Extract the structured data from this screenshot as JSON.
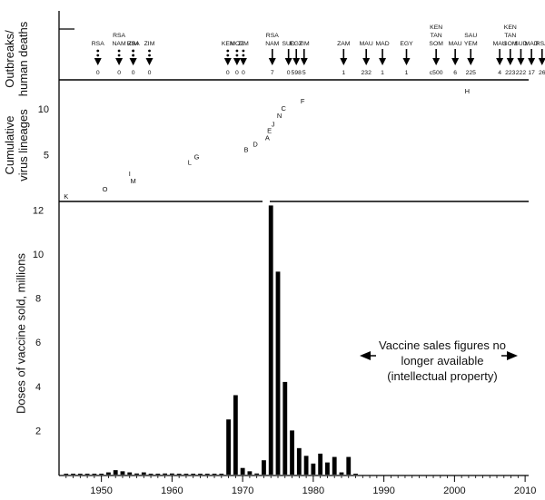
{
  "chart_data": {
    "type": "bar",
    "panels": {
      "outbreaks": {
        "ylabel": "Outbreaks/\nhuman deaths",
        "events": [
          {
            "year": 1949.5,
            "countries": [
              "RSA"
            ],
            "deaths": "0",
            "arrow": "dotted"
          },
          {
            "year": 1952.5,
            "countries": [
              "RSA",
              "NAM"
            ],
            "deaths": "0",
            "arrow": "dotted"
          },
          {
            "year": 1954.5,
            "countries": [
              "RSA"
            ],
            "deaths": "0",
            "arrow": "dotted"
          },
          {
            "year": 1954.5,
            "countries": [
              "ZIM"
            ],
            "deaths": "",
            "arrow": "dotted"
          },
          {
            "year": 1956.8,
            "countries": [
              "ZIM"
            ],
            "deaths": "0",
            "arrow": "dotted"
          },
          {
            "year": 1967.9,
            "countries": [
              "KEN"
            ],
            "deaths": "0",
            "arrow": "dotted"
          },
          {
            "year": 1969.2,
            "countries": [
              "MOZ"
            ],
            "deaths": "0",
            "arrow": "dotted"
          },
          {
            "year": 1970.1,
            "countries": [
              "ZIM"
            ],
            "deaths": "0",
            "arrow": "dotted"
          },
          {
            "year": 1974.2,
            "countries": [
              "RSA",
              "NAM"
            ],
            "deaths": "7",
            "arrow": "solid"
          },
          {
            "year": 1976.5,
            "countries": [
              "SUD"
            ],
            "deaths": "0",
            "arrow": "solid"
          },
          {
            "year": 1977.6,
            "countries": [
              "EGY"
            ],
            "deaths": "598",
            "arrow": "solid"
          },
          {
            "year": 1978.7,
            "countries": [
              "ZIM"
            ],
            "deaths": "5",
            "arrow": "solid"
          },
          {
            "year": 1984.3,
            "countries": [
              "ZAM"
            ],
            "deaths": "1",
            "arrow": "solid"
          },
          {
            "year": 1987.5,
            "countries": [
              "MAU"
            ],
            "deaths": "232",
            "arrow": "solid"
          },
          {
            "year": 1989.8,
            "countries": [
              "MAD"
            ],
            "deaths": "1",
            "arrow": "solid"
          },
          {
            "year": 1993.2,
            "countries": [
              "EGY"
            ],
            "deaths": "1",
            "arrow": "solid"
          },
          {
            "year": 1997.4,
            "countries": [
              "KEN",
              "TAN",
              "SOM"
            ],
            "deaths": "c500",
            "arrow": "solid"
          },
          {
            "year": 2000.1,
            "countries": [
              "MAU"
            ],
            "deaths": "6",
            "arrow": "solid"
          },
          {
            "year": 2002.3,
            "countries": [
              "SAU",
              "YEM"
            ],
            "deaths": "225",
            "arrow": "solid"
          },
          {
            "year": 2006.4,
            "countries": [
              "MAU"
            ],
            "deaths": "4",
            "arrow": "solid"
          },
          {
            "year": 2007.9,
            "countries": [
              "KEN",
              "TAN",
              "SOM"
            ],
            "deaths": "223",
            "arrow": "solid"
          },
          {
            "year": 2009.4,
            "countries": [
              "SUD"
            ],
            "deaths": "222",
            "arrow": "solid"
          },
          {
            "year": 2010.9,
            "countries": [
              "MAD"
            ],
            "deaths": "17",
            "arrow": "solid"
          },
          {
            "year": 2012.4,
            "countries": [
              "RSA"
            ],
            "deaths": "26",
            "arrow": "solid"
          }
        ]
      },
      "lineages": {
        "ylabel": "Cumulative\nvirus lineages",
        "yticks": [
          5,
          10
        ],
        "ylim": [
          0,
          12
        ],
        "points": [
          {
            "label": "K",
            "x": 1945.0,
            "y": 0.5
          },
          {
            "label": "O",
            "x": 1950.5,
            "y": 1.3
          },
          {
            "label": "I",
            "x": 1954.0,
            "y": 3.0
          },
          {
            "label": "M",
            "x": 1954.5,
            "y": 2.2
          },
          {
            "label": "L",
            "x": 1962.5,
            "y": 4.2
          },
          {
            "label": "G",
            "x": 1963.5,
            "y": 4.8
          },
          {
            "label": "B",
            "x": 1970.5,
            "y": 5.6
          },
          {
            "label": "D",
            "x": 1971.8,
            "y": 6.2
          },
          {
            "label": "A",
            "x": 1973.5,
            "y": 6.9
          },
          {
            "label": "E",
            "x": 1973.8,
            "y": 7.7
          },
          {
            "label": "J",
            "x": 1974.3,
            "y": 8.4
          },
          {
            "label": "N",
            "x": 1975.2,
            "y": 9.3
          },
          {
            "label": "C",
            "x": 1975.8,
            "y": 10.1
          },
          {
            "label": "F",
            "x": 1978.5,
            "y": 10.9
          },
          {
            "label": "H",
            "x": 2001.8,
            "y": 12.0
          }
        ]
      },
      "vaccine": {
        "ylabel": "Doses of vaccine sold, millions",
        "yticks": [
          "2",
          "4",
          "6",
          "8",
          "10",
          "12"
        ],
        "ylim": [
          0,
          12.3
        ],
        "xticks": [
          1950,
          1960,
          1970,
          1980,
          1990,
          2000,
          2010
        ],
        "xtick_labels": [
          "1950",
          "1960",
          "1970",
          "1980",
          "1990",
          "2000",
          "2010"
        ],
        "xlim": [
          1944,
          2010.5
        ],
        "x": [
          1945,
          1946,
          1947,
          1948,
          1949,
          1950,
          1951,
          1952,
          1953,
          1954,
          1955,
          1956,
          1957,
          1958,
          1959,
          1960,
          1961,
          1962,
          1963,
          1964,
          1965,
          1966,
          1967,
          1968,
          1969,
          1970,
          1971,
          1972,
          1973,
          1974,
          1975,
          1976,
          1977,
          1978,
          1979,
          1980,
          1981,
          1982,
          1983,
          1984,
          1985,
          1986
        ],
        "values": [
          0.02,
          0.02,
          0.02,
          0.03,
          0.03,
          0.03,
          0.1,
          0.2,
          0.15,
          0.1,
          0.05,
          0.1,
          0.02,
          0.02,
          0.05,
          0.05,
          0.02,
          0.02,
          0.02,
          0.02,
          0.02,
          0.02,
          0.02,
          2.5,
          3.6,
          0.3,
          0.15,
          0.05,
          0.65,
          12.2,
          9.2,
          4.2,
          2.0,
          1.2,
          0.85,
          0.5,
          0.95,
          0.55,
          0.8,
          0.1,
          0.8,
          0.02
        ]
      }
    },
    "annotation": {
      "text_line1": "Vaccine sales figures no",
      "text_line2": "longer available",
      "text_line3": "(intellectual property)"
    }
  }
}
